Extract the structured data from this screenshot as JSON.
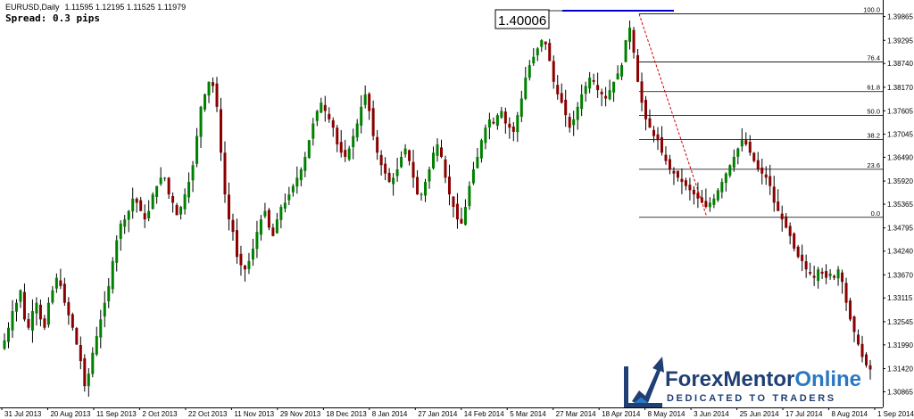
{
  "header": {
    "symbol": "EURUSD,Daily",
    "ohlc": "1.11595 1.12195 1.11525 1.11979",
    "spread": "Spread: 0.3 pips"
  },
  "price_marker": {
    "label": "1.40006",
    "value": 1.40006,
    "line_color": "#0000cc"
  },
  "fibonacci": {
    "high": 1.3993,
    "low": 1.3505,
    "levels": [
      {
        "label": "100.0",
        "ratio": 1.0
      },
      {
        "label": "76.4",
        "ratio": 0.764
      },
      {
        "label": "61.8",
        "ratio": 0.618
      },
      {
        "label": "50.0",
        "ratio": 0.5
      },
      {
        "label": "38.2",
        "ratio": 0.382
      },
      {
        "label": "23.6",
        "ratio": 0.236
      },
      {
        "label": "0.0",
        "ratio": 0.0
      }
    ]
  },
  "logo": {
    "part1": "ForexMentor",
    "part2": "Online",
    "tagline": "DEDICATED TO TRADERS",
    "color_dark": "#1f3f75",
    "color_light": "#2a78c4"
  },
  "chart_data": {
    "type": "candlestick",
    "title": "EURUSD,Daily",
    "ylim": [
      1.3049,
      1.4022
    ],
    "y_ticks": [
      "1.39865",
      "1.39295",
      "1.38740",
      "1.38170",
      "1.37605",
      "1.37045",
      "1.36490",
      "1.35920",
      "1.35365",
      "1.34795",
      "1.34240",
      "1.33670",
      "1.33115",
      "1.32545",
      "1.31990",
      "1.31420",
      "1.30865"
    ],
    "x_ticks": [
      "31 Jul 2013",
      "20 Aug 2013",
      "11 Sep 2013",
      "2 Oct 2013",
      "22 Oct 2013",
      "11 Nov 2013",
      "29 Nov 2013",
      "18 Dec 2013",
      "8 Jan 2014",
      "27 Jan 2014",
      "14 Feb 2014",
      "5 Mar 2014",
      "27 Mar 2014",
      "18 Apr 2014",
      "8 May 2014",
      "3 Jun 2014",
      "25 Jun 2014",
      "17 Jul 2014",
      "8 Aug 2014",
      "1 Sep 2014"
    ],
    "bull_color": "#008000",
    "bear_color": "#8b0000",
    "closes": [
      1.321,
      1.324,
      1.328,
      1.33,
      1.333,
      1.326,
      1.324,
      1.328,
      1.33,
      1.326,
      1.324,
      1.33,
      1.333,
      1.336,
      1.334,
      1.33,
      1.327,
      1.324,
      1.32,
      1.316,
      1.31,
      1.313,
      1.318,
      1.322,
      1.326,
      1.33,
      1.334,
      1.34,
      1.345,
      1.349,
      1.35,
      1.352,
      1.355,
      1.354,
      1.352,
      1.35,
      1.352,
      1.356,
      1.358,
      1.36,
      1.36,
      1.356,
      1.354,
      1.351,
      1.353,
      1.356,
      1.359,
      1.363,
      1.37,
      1.377,
      1.38,
      1.383,
      1.382,
      1.377,
      1.366,
      1.356,
      1.35,
      1.347,
      1.341,
      1.339,
      1.338,
      1.34,
      1.343,
      1.347,
      1.35,
      1.352,
      1.348,
      1.346,
      1.35,
      1.353,
      1.354,
      1.356,
      1.358,
      1.36,
      1.362,
      1.365,
      1.369,
      1.373,
      1.376,
      1.378,
      1.376,
      1.374,
      1.372,
      1.368,
      1.366,
      1.365,
      1.367,
      1.37,
      1.373,
      1.377,
      1.38,
      1.376,
      1.37,
      1.366,
      1.363,
      1.361,
      1.359,
      1.36,
      1.362,
      1.365,
      1.367,
      1.364,
      1.36,
      1.356,
      1.356,
      1.359,
      1.362,
      1.366,
      1.368,
      1.365,
      1.36,
      1.356,
      1.353,
      1.35,
      1.349,
      1.353,
      1.358,
      1.362,
      1.365,
      1.369,
      1.372,
      1.374,
      1.373,
      1.375,
      1.376,
      1.373,
      1.372,
      1.371,
      1.375,
      1.379,
      1.384,
      1.387,
      1.389,
      1.391,
      1.393,
      1.392,
      1.388,
      1.383,
      1.38,
      1.378,
      1.375,
      1.372,
      1.374,
      1.377,
      1.38,
      1.382,
      1.384,
      1.383,
      1.381,
      1.38,
      1.379,
      1.381,
      1.383,
      1.385,
      1.387,
      1.393,
      1.396,
      1.39,
      1.383,
      1.378,
      1.374,
      1.372,
      1.37,
      1.369,
      1.366,
      1.364,
      1.362,
      1.361,
      1.36,
      1.359,
      1.358,
      1.357,
      1.356,
      1.355,
      1.354,
      1.353,
      1.354,
      1.355,
      1.357,
      1.359,
      1.361,
      1.363,
      1.365,
      1.367,
      1.369,
      1.368,
      1.366,
      1.364,
      1.362,
      1.361,
      1.36,
      1.358,
      1.354,
      1.352,
      1.35,
      1.348,
      1.346,
      1.343,
      1.341,
      1.34,
      1.338,
      1.337,
      1.336,
      1.338,
      1.337,
      1.336,
      1.337,
      1.336,
      1.338,
      1.335,
      1.33,
      1.326,
      1.323,
      1.32,
      1.317,
      1.315,
      1.314
    ]
  }
}
